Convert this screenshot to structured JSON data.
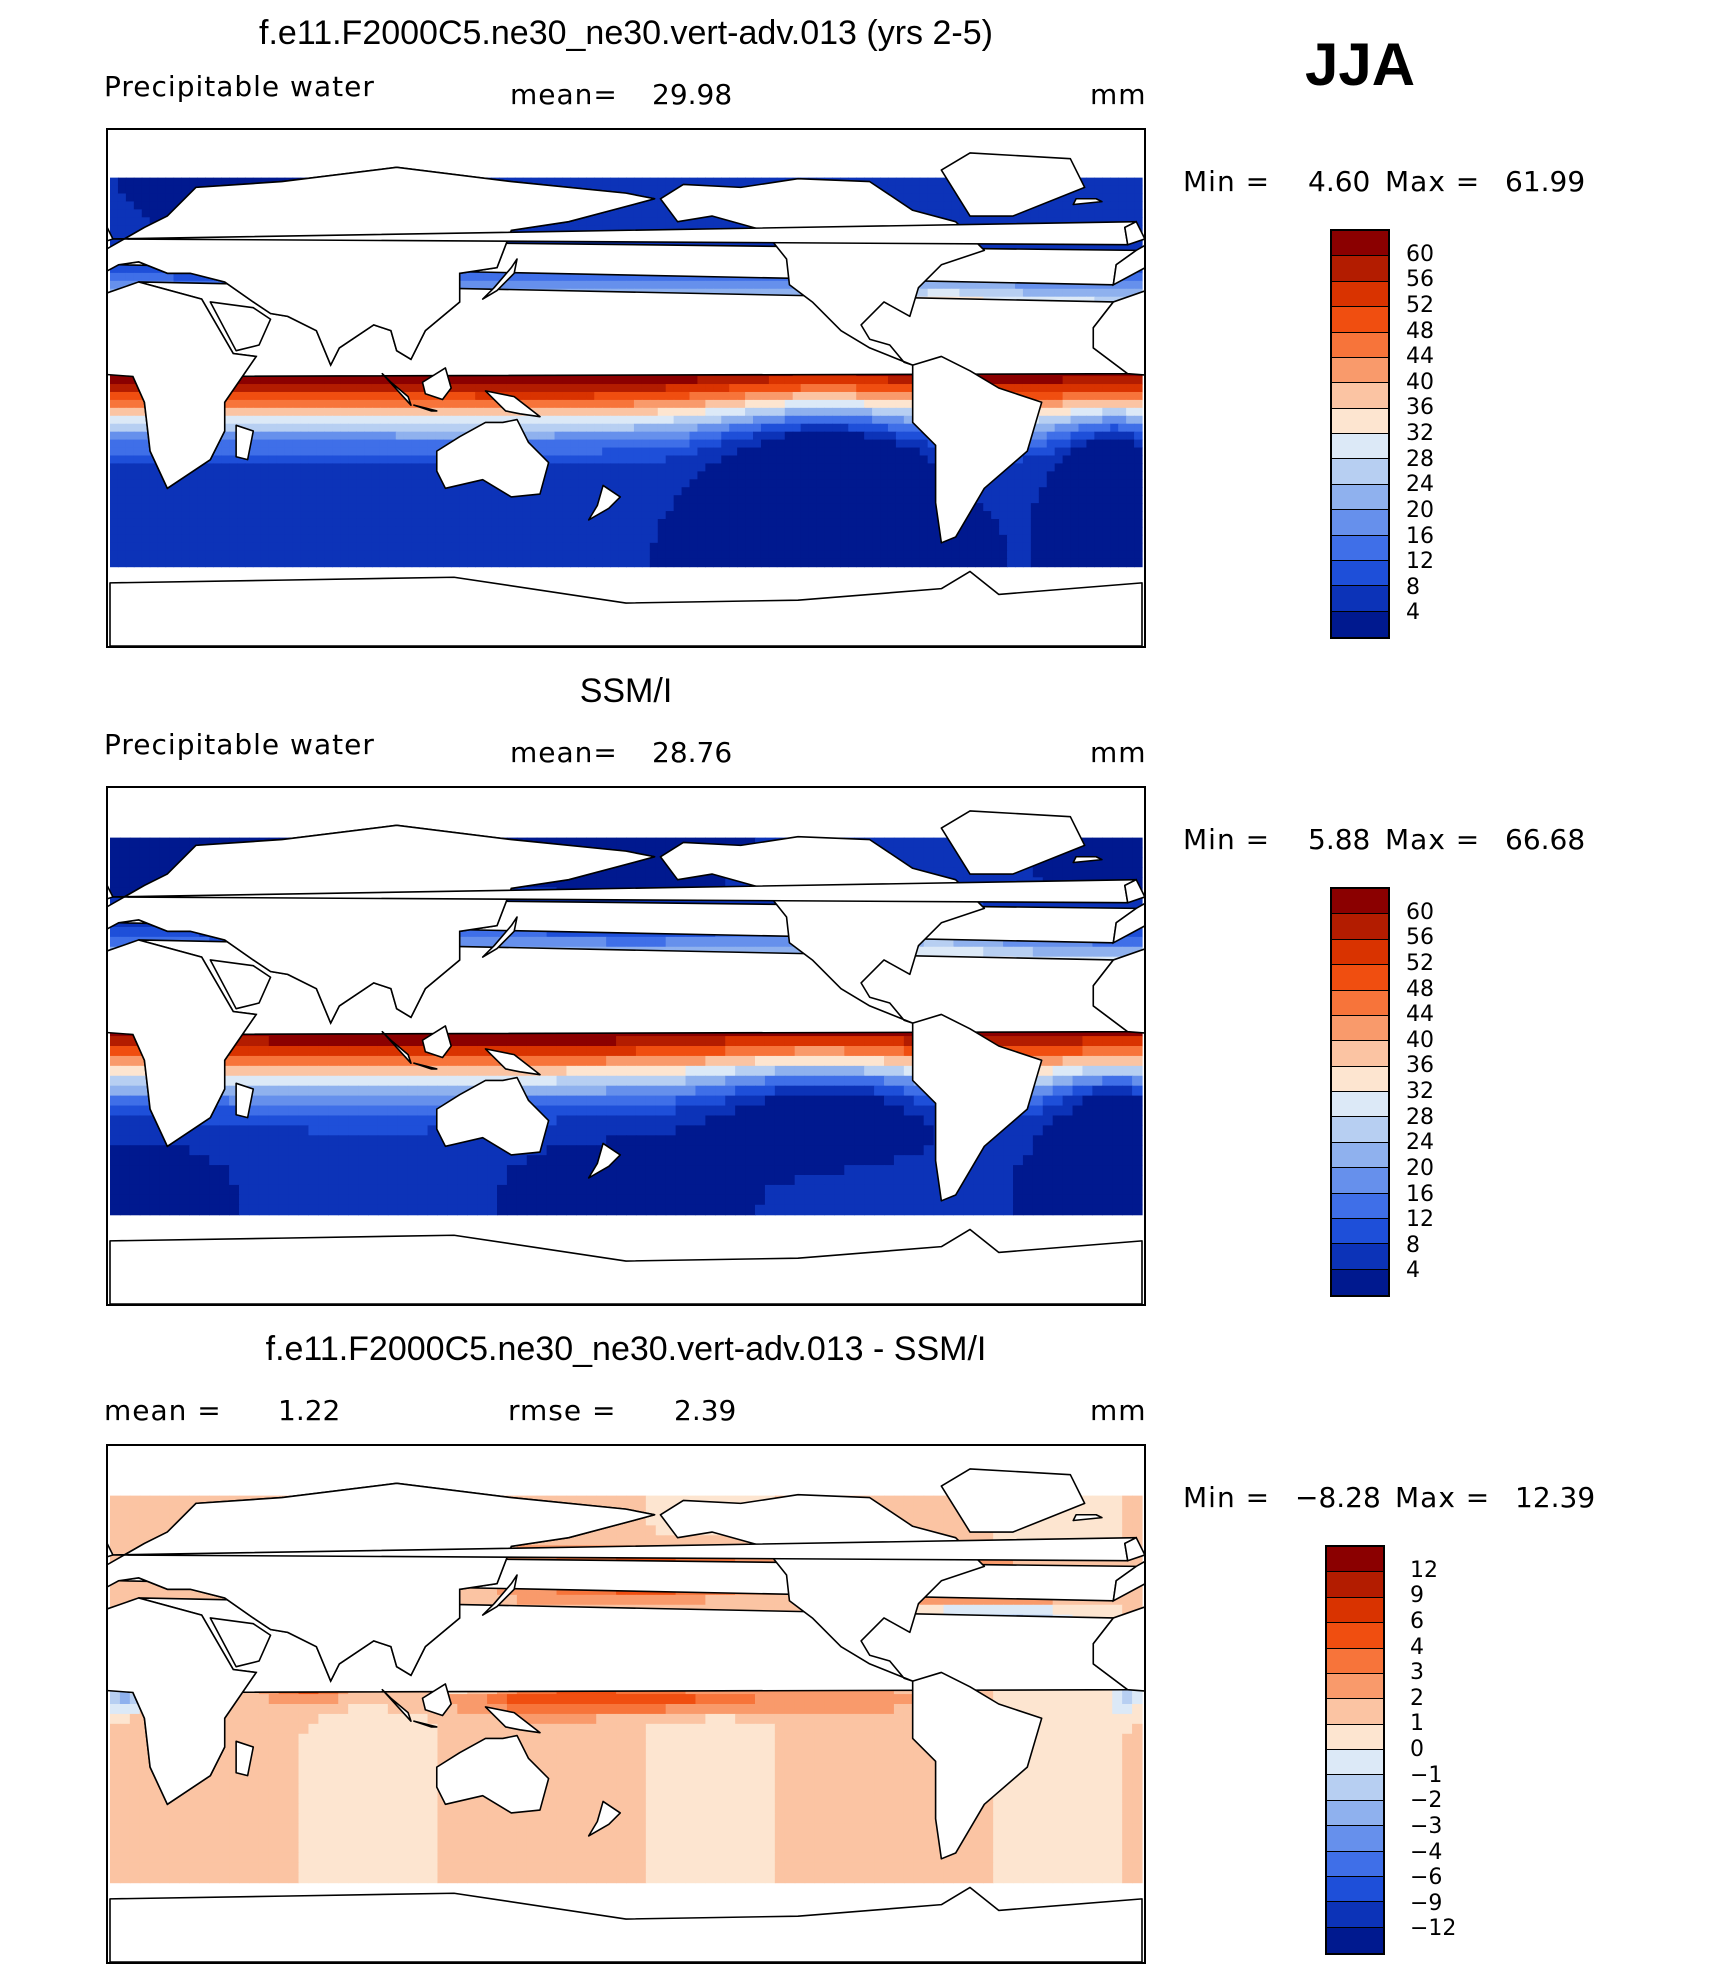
{
  "season": "JJA",
  "units": "mm",
  "panels": [
    {
      "id": "model",
      "title": "f.e11.F2000C5.ne30_ne30.vert-adv.013 (yrs 2-5)",
      "variable": "Precipitable water",
      "mean_label": "mean=",
      "mean_value": "29.98",
      "units": "mm",
      "min_label": "Min =",
      "min_value": "4.60",
      "max_label": "Max =",
      "max_value": "61.99"
    },
    {
      "id": "obs",
      "title": "SSM/I",
      "variable": "Precipitable water",
      "mean_label": "mean=",
      "mean_value": "28.76",
      "units": "mm",
      "min_label": "Min =",
      "min_value": "5.88",
      "max_label": "Max =",
      "max_value": "66.68"
    },
    {
      "id": "diff",
      "title": "f.e11.F2000C5.ne30_ne30.vert-adv.013 - SSM/I",
      "mean_label": "mean =",
      "mean_value": "1.22",
      "rmse_label": "rmse =",
      "rmse_value": "2.39",
      "units": "mm",
      "min_label": "Min =",
      "min_value": "−8.28",
      "max_label": "Max =",
      "max_value": "12.39"
    }
  ],
  "colorbars": {
    "pw": {
      "ticks": [
        "60",
        "56",
        "52",
        "48",
        "44",
        "40",
        "36",
        "32",
        "28",
        "24",
        "20",
        "16",
        "12",
        "8",
        "4"
      ],
      "colors": [
        "#8b0000",
        "#b31c00",
        "#d93300",
        "#f04e10",
        "#f7743a",
        "#f99a6b",
        "#fbc4a3",
        "#fde5d0",
        "#dce9f7",
        "#b7cff2",
        "#8fb1ee",
        "#6690ec",
        "#3f6fe8",
        "#1e4fd9",
        "#0c33b8",
        "#00198f"
      ]
    },
    "diff": {
      "ticks": [
        "12",
        "9",
        "6",
        "4",
        "3",
        "2",
        "1",
        "0",
        "−1",
        "−2",
        "−3",
        "−4",
        "−6",
        "−9",
        "−12"
      ],
      "colors": [
        "#8b0000",
        "#b31c00",
        "#d93300",
        "#f04e10",
        "#f7743a",
        "#f99a6b",
        "#fbc4a3",
        "#fde5d0",
        "#dce9f7",
        "#b7cff2",
        "#8fb1ee",
        "#6690ec",
        "#3f6fe8",
        "#1e4fd9",
        "#0c33b8",
        "#00198f"
      ]
    }
  }
}
